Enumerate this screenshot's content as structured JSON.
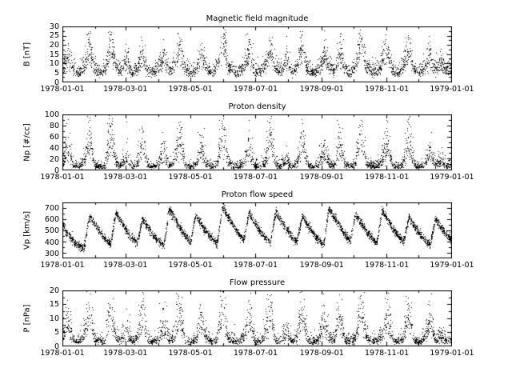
{
  "figure": {
    "background": "#ffffff",
    "point_color": "#000000",
    "axis_color": "#000000"
  },
  "chart_data": [
    {
      "type": "scatter",
      "title": "Magnetic field magnitude",
      "ylabel": "B [nT]",
      "ylim": [
        0,
        30
      ],
      "yticks": [
        0,
        5,
        10,
        15,
        20,
        25,
        30
      ],
      "xlim_days": [
        0,
        365
      ],
      "xtick_days": [
        0,
        59,
        120,
        181,
        243,
        304,
        365
      ],
      "xminor_days": [
        31,
        90,
        151,
        212,
        273,
        334
      ],
      "xtick_labels": [
        "1978-01-01",
        "1978-03-01",
        "1978-05-01",
        "1978-07-01",
        "1978-09-01",
        "1978-11-01",
        "1979-01-01"
      ],
      "baseline": {
        "sample_interval_days": 5,
        "values": [
          8,
          14,
          6,
          5,
          9,
          18,
          7,
          5,
          6,
          22,
          8,
          6,
          12,
          5,
          7,
          16,
          6,
          5,
          8,
          13,
          6,
          9,
          19,
          7,
          5,
          6,
          14,
          8,
          5,
          7,
          24,
          9,
          6,
          5,
          8,
          15,
          6,
          5,
          9,
          18,
          7,
          6,
          12,
          5,
          8,
          20,
          6,
          5,
          7,
          14,
          9,
          6,
          16,
          7,
          5,
          8,
          25,
          8,
          6,
          5,
          11,
          16,
          6,
          5,
          9,
          19,
          7,
          5,
          8,
          15,
          6,
          10,
          7,
          6
        ]
      },
      "noise": {
        "type": "lognormal",
        "sigma": 0.3,
        "points": 3000
      }
    },
    {
      "type": "scatter",
      "title": "Proton density",
      "ylabel": "Np [#/cc]",
      "ylim": [
        0,
        100
      ],
      "yticks": [
        0,
        20,
        40,
        60,
        80,
        100
      ],
      "xlim_days": [
        0,
        365
      ],
      "xtick_days": [
        0,
        59,
        120,
        181,
        243,
        304,
        365
      ],
      "xminor_days": [
        31,
        90,
        151,
        212,
        273,
        334
      ],
      "xtick_labels": [
        "1978-01-01",
        "1978-03-01",
        "1978-05-01",
        "1978-07-01",
        "1978-09-01",
        "1978-11-01",
        "1979-01-01"
      ],
      "baseline": {
        "sample_interval_days": 5,
        "values": [
          12,
          45,
          8,
          6,
          15,
          60,
          9,
          6,
          8,
          75,
          12,
          7,
          25,
          6,
          10,
          50,
          8,
          6,
          12,
          35,
          7,
          16,
          65,
          9,
          6,
          8,
          42,
          11,
          6,
          9,
          85,
          13,
          7,
          6,
          12,
          40,
          8,
          6,
          15,
          55,
          9,
          7,
          20,
          6,
          11,
          58,
          8,
          6,
          9,
          36,
          12,
          7,
          46,
          9,
          6,
          11,
          80,
          10,
          7,
          6,
          18,
          48,
          8,
          6,
          13,
          55,
          9,
          6,
          10,
          38,
          8,
          16,
          9,
          7
        ]
      },
      "noise": {
        "type": "lognormal",
        "sigma": 0.45,
        "points": 3000
      }
    },
    {
      "type": "scatter",
      "title": "Proton flow speed",
      "ylabel": "Vp [km/s]",
      "ylim": [
        260,
        750
      ],
      "yticks": [
        300,
        400,
        500,
        600,
        700
      ],
      "xlim_days": [
        0,
        365
      ],
      "xtick_days": [
        0,
        59,
        120,
        181,
        243,
        304,
        365
      ],
      "xminor_days": [
        31,
        90,
        151,
        212,
        273,
        334
      ],
      "xtick_labels": [
        "1978-01-01",
        "1978-03-01",
        "1978-05-01",
        "1978-07-01",
        "1978-09-01",
        "1978-11-01",
        "1979-01-01"
      ],
      "baseline": {
        "sample_interval_days": 5,
        "values": [
          560,
          470,
          410,
          370,
          350,
          630,
          560,
          490,
          430,
          380,
          660,
          580,
          500,
          440,
          390,
          610,
          530,
          460,
          410,
          370,
          690,
          610,
          530,
          460,
          400,
          640,
          560,
          490,
          430,
          380,
          710,
          630,
          550,
          480,
          420,
          660,
          580,
          500,
          440,
          390,
          670,
          590,
          520,
          450,
          400,
          630,
          550,
          480,
          420,
          380,
          700,
          620,
          540,
          470,
          410,
          650,
          570,
          500,
          440,
          390,
          680,
          600,
          520,
          460,
          400,
          620,
          540,
          480,
          420,
          380,
          610,
          530,
          470,
          420
        ]
      },
      "noise": {
        "type": "normal",
        "sigma_abs": 18,
        "points": 3800
      }
    },
    {
      "type": "scatter",
      "title": "Flow pressure",
      "ylabel": "P [nPa]",
      "ylim": [
        0,
        20
      ],
      "yticks": [
        0,
        5,
        10,
        15,
        20
      ],
      "xlim_days": [
        0,
        365
      ],
      "xtick_days": [
        0,
        59,
        120,
        181,
        243,
        304,
        365
      ],
      "xminor_days": [
        31,
        90,
        151,
        212,
        273,
        334
      ],
      "xtick_labels": [
        "1978-01-01",
        "1978-03-01",
        "1978-05-01",
        "1978-07-01",
        "1978-09-01",
        "1978-11-01",
        "1979-01-01"
      ],
      "baseline": {
        "sample_interval_days": 5,
        "values": [
          3,
          10,
          2,
          1.5,
          4,
          14,
          2,
          1.5,
          2,
          16,
          3,
          2,
          6,
          1.5,
          3,
          12,
          2,
          1.5,
          3,
          8,
          2,
          4,
          15,
          2,
          1.5,
          2,
          10,
          3,
          1.5,
          2,
          18,
          3,
          2,
          1.5,
          3,
          10,
          2,
          1.5,
          4,
          13,
          2,
          2,
          5,
          1.5,
          3,
          14,
          2,
          1.5,
          2,
          9,
          3,
          2,
          12,
          2,
          1.5,
          3,
          17,
          3,
          2,
          1.5,
          4,
          11,
          2,
          1.5,
          3,
          14,
          2,
          1.5,
          3,
          9,
          2,
          4,
          2,
          2
        ]
      },
      "noise": {
        "type": "lognormal",
        "sigma": 0.45,
        "points": 3000
      }
    }
  ]
}
